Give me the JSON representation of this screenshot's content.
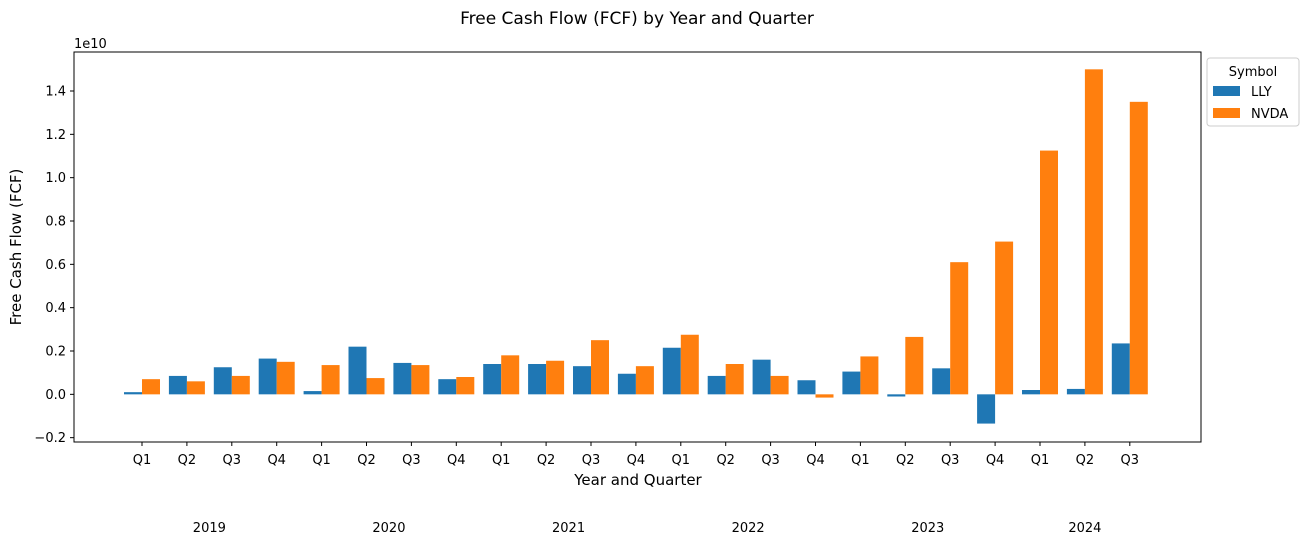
{
  "chart_data": {
    "type": "bar",
    "title": "Free Cash Flow (FCF) by Year and Quarter",
    "xlabel": "Year and Quarter",
    "ylabel": "Free Cash Flow (FCF)",
    "y_scale_label": "1e10",
    "y_scale_factor": 10000000000.0,
    "ylim": [
      -0.22,
      1.58
    ],
    "yticks": [
      "−0.2",
      "0.0",
      "0.2",
      "0.4",
      "0.6",
      "0.8",
      "1.0",
      "1.2",
      "1.4"
    ],
    "ytick_values": [
      -0.2,
      0.0,
      0.2,
      0.4,
      0.6,
      0.8,
      1.0,
      1.2,
      1.4
    ],
    "categories": [
      "Q1",
      "Q2",
      "Q3",
      "Q4",
      "Q1",
      "Q2",
      "Q3",
      "Q4",
      "Q1",
      "Q2",
      "Q3",
      "Q4",
      "Q1",
      "Q2",
      "Q3",
      "Q4",
      "Q1",
      "Q2",
      "Q3",
      "Q4",
      "Q1",
      "Q2",
      "Q3"
    ],
    "year_groups": [
      {
        "label": "2019",
        "start": 0,
        "end": 3
      },
      {
        "label": "2020",
        "start": 4,
        "end": 7
      },
      {
        "label": "2021",
        "start": 8,
        "end": 11
      },
      {
        "label": "2022",
        "start": 12,
        "end": 15
      },
      {
        "label": "2023",
        "start": 16,
        "end": 19
      },
      {
        "label": "2024",
        "start": 20,
        "end": 22
      }
    ],
    "legend": {
      "title": "Symbol",
      "position": "outside upper right"
    },
    "series": [
      {
        "name": "LLY",
        "color": "#1f77b4",
        "values": [
          0.01,
          0.085,
          0.125,
          0.165,
          0.015,
          0.22,
          0.145,
          0.07,
          0.14,
          0.14,
          0.13,
          0.095,
          0.215,
          0.085,
          0.16,
          0.065,
          0.105,
          -0.01,
          0.12,
          -0.135,
          0.02,
          0.025,
          0.235
        ]
      },
      {
        "name": "NVDA",
        "color": "#ff7f0e",
        "values": [
          0.07,
          0.06,
          0.085,
          0.15,
          0.135,
          0.075,
          0.135,
          0.08,
          0.18,
          0.155,
          0.25,
          0.13,
          0.275,
          0.14,
          0.085,
          -0.015,
          0.175,
          0.265,
          0.61,
          0.705,
          1.125,
          1.5,
          1.35
        ]
      }
    ]
  }
}
